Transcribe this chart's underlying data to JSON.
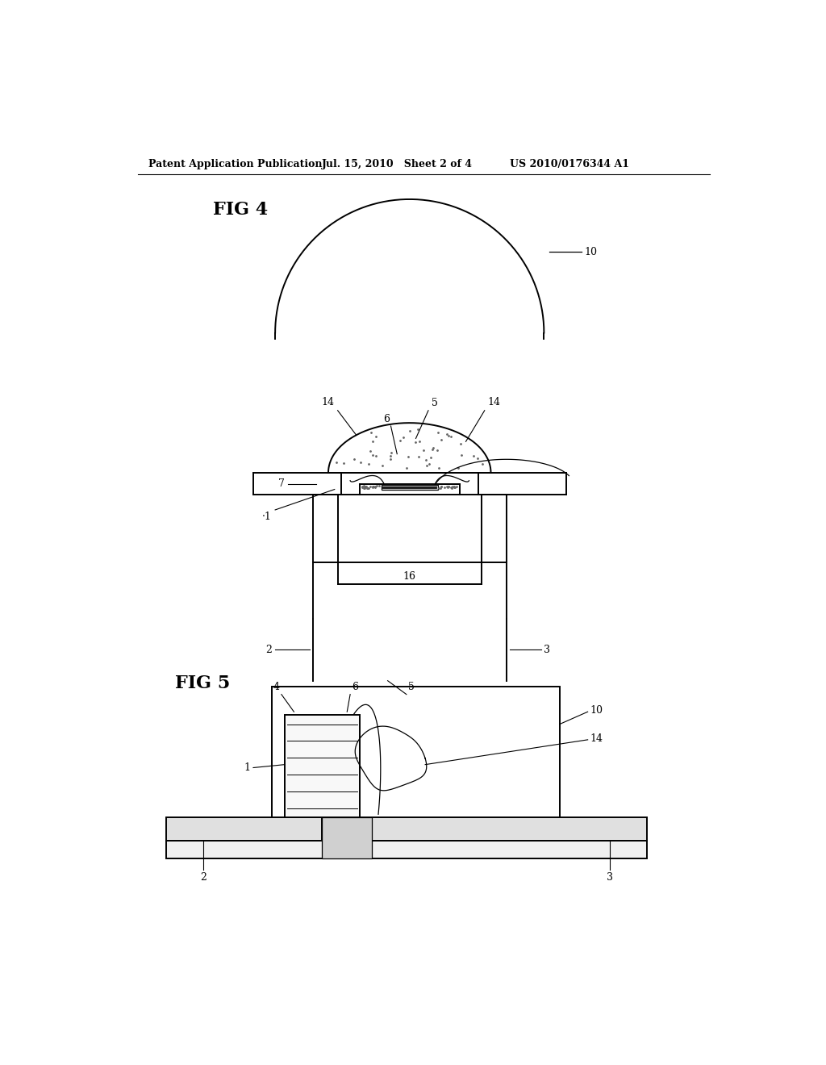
{
  "bg_color": "#ffffff",
  "fig_width": 10.24,
  "fig_height": 13.2,
  "header_text": "Patent Application Publication",
  "header_date": "Jul. 15, 2010   Sheet 2 of 4",
  "header_patent": "US 2010/0176344 A1",
  "fig4_label": "FIG 4",
  "fig5_label": "FIG 5",
  "line_color": "#000000",
  "lw": 1.4,
  "lw_thin": 0.9,
  "lw_med": 1.1,
  "label_fontsize": 9,
  "header_fontsize": 9,
  "fig_label_fontsize": 16
}
